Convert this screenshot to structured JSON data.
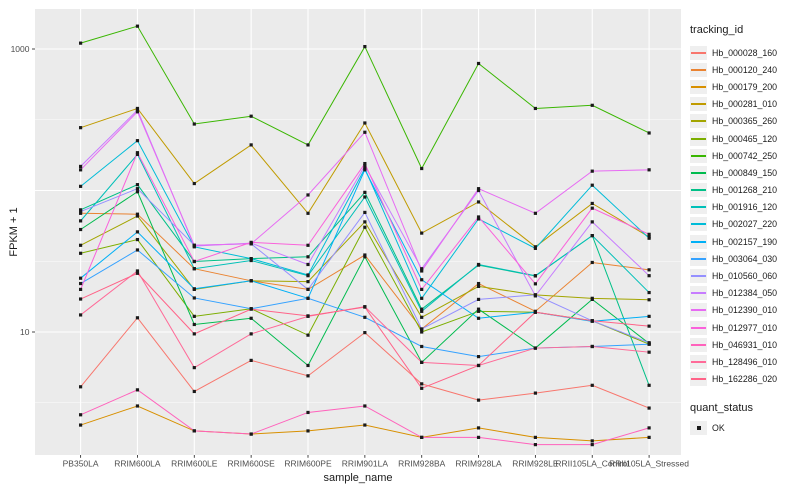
{
  "legend": {
    "tracking_title": "tracking_id",
    "quant_title": "quant_status",
    "quant_items": [
      "OK"
    ]
  },
  "chart_data": {
    "type": "line",
    "title": "",
    "x_axis_label": "sample_name",
    "y_axis_label": "FPKM + 1",
    "y_scale": "log10",
    "ylim": [
      1.4,
      1600
    ],
    "grid": true,
    "legend_position": "right",
    "panel_background": "#EBEBEB",
    "gridline_color": "#FFFFFF",
    "axis_text_color": "#4D4D4D",
    "y_ticks": [
      {
        "value": 1000,
        "label": "1000"
      },
      {
        "value": 10,
        "label": "10"
      }
    ],
    "y_major_gridlines": [
      10,
      100,
      1000
    ],
    "y_minor_gridlines": [
      3.162,
      31.62,
      316.2
    ],
    "marker": {
      "shape": "square",
      "color": "#1A1A1A",
      "size": 3.2
    },
    "categories": [
      "PB350LA",
      "RRIM600LA",
      "RRIM600LE",
      "RRIM600SE",
      "RRIM600PE",
      "RRIM901LA",
      "RRIM928BA",
      "RRIM928LA",
      "RRIM928LE",
      "RRII105LA_Control",
      "RRII105LA_Stressed"
    ],
    "series": [
      {
        "name": "Hb_000028_160",
        "color": "#F8766D",
        "values": [
          4.1,
          12.6,
          3.8,
          6.3,
          4.9,
          9.9,
          4.3,
          3.3,
          3.7,
          4.2,
          2.9
        ]
      },
      {
        "name": "Hb_000120_240",
        "color": "#EA8331",
        "values": [
          69,
          68,
          28,
          23,
          20,
          35,
          10.5,
          22,
          14,
          31,
          27.5
        ]
      },
      {
        "name": "Hb_000179_200",
        "color": "#D89000",
        "values": [
          2.2,
          3.0,
          2.0,
          1.9,
          2.0,
          2.2,
          1.8,
          2.1,
          1.8,
          1.7,
          1.8
        ]
      },
      {
        "name": "Hb_000281_010",
        "color": "#C09B00",
        "values": [
          278,
          380,
          112,
          210,
          69,
          300,
          50,
          83,
          40,
          81,
          47
        ]
      },
      {
        "name": "Hb_000365_260",
        "color": "#A3A500",
        "values": [
          41,
          66,
          20,
          23,
          22.7,
          60,
          12.7,
          21,
          18.3,
          17.3,
          16.9
        ]
      },
      {
        "name": "Hb_000465_120",
        "color": "#7CAE00",
        "values": [
          36,
          45,
          12.9,
          14.6,
          9.5,
          55,
          10,
          14,
          13.8,
          12,
          8.2
        ]
      },
      {
        "name": "Hb_000742_250",
        "color": "#39B600",
        "values": [
          1100,
          1450,
          295,
          335,
          210,
          1040,
          143,
          790,
          380,
          400,
          255
        ]
      },
      {
        "name": "Hb_000849_150",
        "color": "#00BB4E",
        "values": [
          53,
          98,
          11.3,
          12.5,
          5.8,
          34,
          6.1,
          14.5,
          7.7,
          17,
          8.3
        ]
      },
      {
        "name": "Hb_001268_210",
        "color": "#00C087",
        "values": [
          73,
          110,
          31.5,
          33,
          34,
          97,
          14.5,
          29.7,
          24.9,
          48,
          4.2
        ]
      },
      {
        "name": "Hb_001916_120",
        "color": "#00C0B8",
        "values": [
          61,
          180,
          28,
          32,
          25,
          90,
          14,
          30,
          25,
          48,
          19
        ]
      },
      {
        "name": "Hb_002027_220",
        "color": "#00BCD8",
        "values": [
          107,
          225,
          40,
          33,
          25.3,
          143,
          17.3,
          63,
          39,
          109,
          46
        ]
      },
      {
        "name": "Hb_002157_190",
        "color": "#00B0F6",
        "values": [
          24,
          51,
          20.2,
          23,
          17.3,
          140,
          23.4,
          12.5,
          13.8,
          11.9,
          12.9
        ]
      },
      {
        "name": "Hb_003064_030",
        "color": "#35A2FF",
        "values": [
          22,
          38,
          17.4,
          14.6,
          17.3,
          12.7,
          7.9,
          6.7,
          7.7,
          7.9,
          8.2
        ]
      },
      {
        "name": "Hb_010560_060",
        "color": "#9590FF",
        "values": [
          71,
          103,
          41,
          42,
          20,
          70,
          10.5,
          17,
          18.3,
          12,
          8.4
        ]
      },
      {
        "name": "Hb_012384_050",
        "color": "#C77CFF",
        "values": [
          148,
          370,
          40.5,
          42.5,
          30,
          150,
          28,
          100,
          18,
          60,
          25
        ]
      },
      {
        "name": "Hb_012390_010",
        "color": "#E76BF3",
        "values": [
          140,
          360,
          41,
          42,
          93,
          258,
          27,
          103,
          69,
          137,
          140
        ]
      },
      {
        "name": "Hb_012977_010",
        "color": "#FA62DB",
        "values": [
          20,
          185,
          31.5,
          43,
          41,
          155,
          20,
          65,
          21.9,
          75,
          49
        ]
      },
      {
        "name": "Hb_046931_010",
        "color": "#FF62BC",
        "values": [
          2.6,
          3.9,
          2.0,
          1.9,
          2.7,
          3.0,
          1.8,
          1.8,
          1.6,
          1.6,
          2.1
        ]
      },
      {
        "name": "Hb_128496_010",
        "color": "#FF6A98",
        "values": [
          13.2,
          27,
          5.6,
          9.7,
          12.9,
          15.1,
          6.1,
          5.8,
          7.7,
          7.9,
          7.2
        ]
      },
      {
        "name": "Hb_162286_020",
        "color": "#FF6388",
        "values": [
          17.1,
          26,
          9.7,
          14.5,
          13,
          15,
          4.0,
          5.8,
          13.8,
          12,
          11
        ]
      }
    ]
  }
}
